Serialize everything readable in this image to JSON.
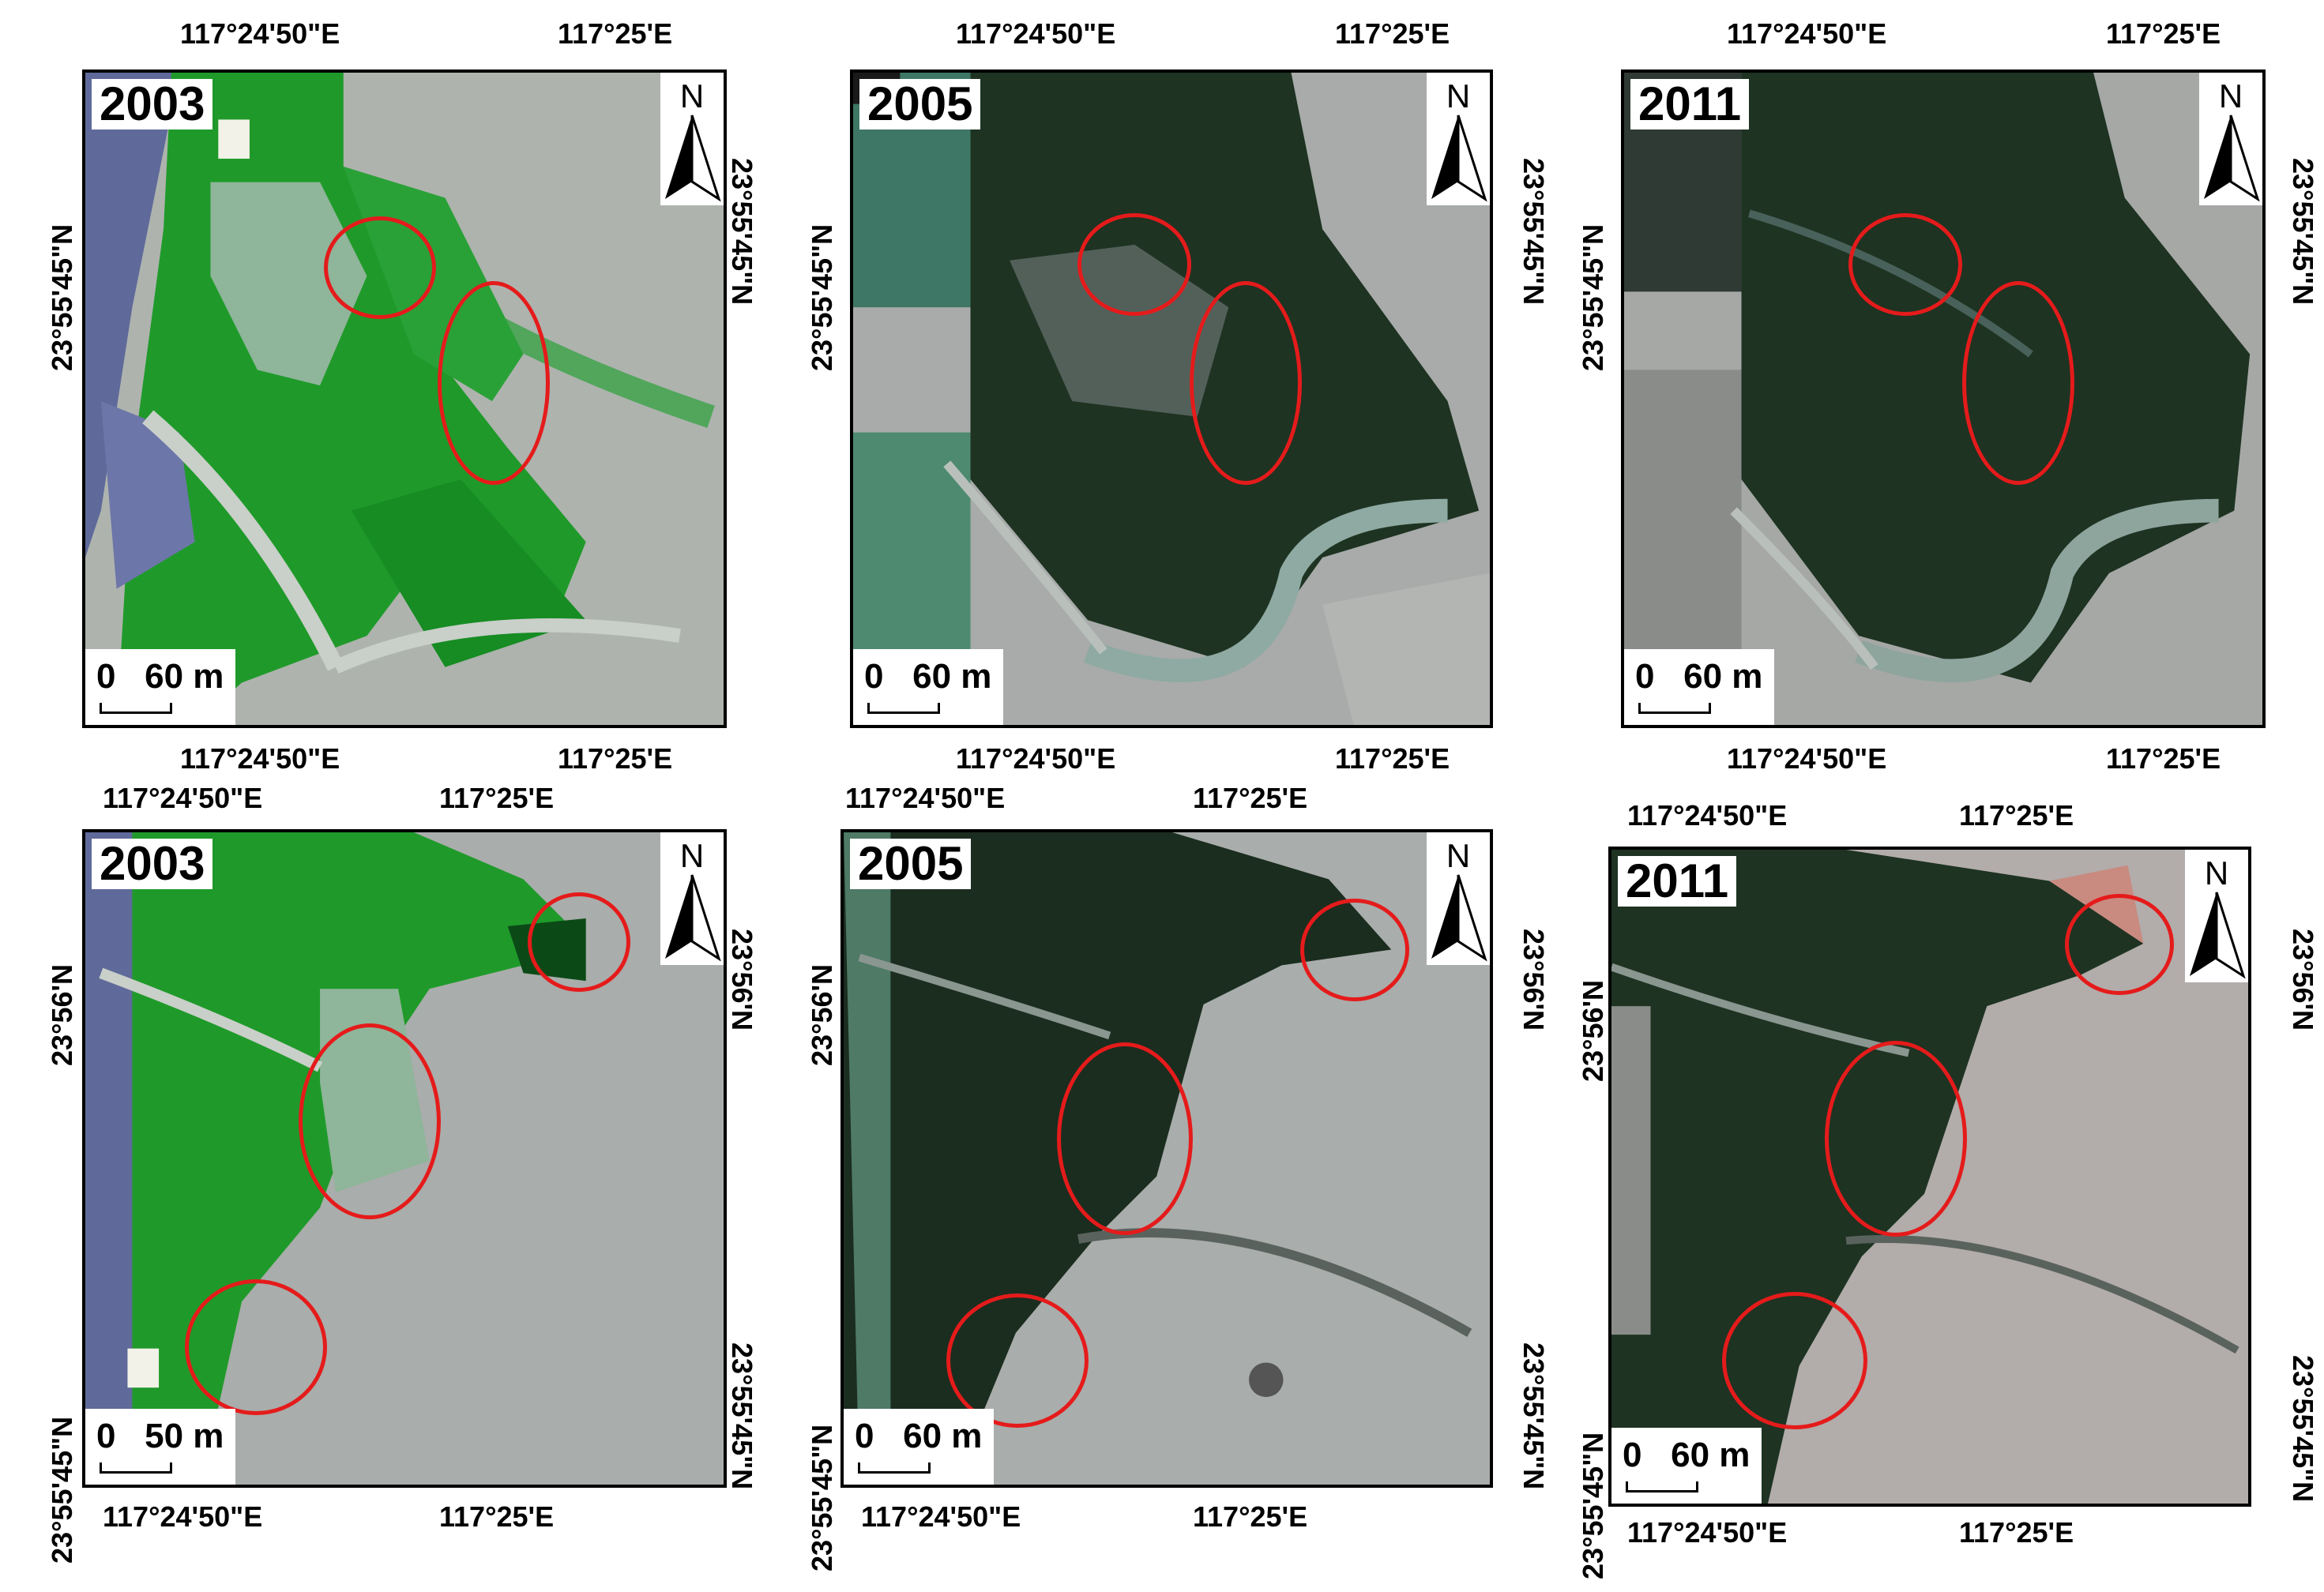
{
  "panels": [
    {
      "year": "2003",
      "scale": "0   60 m",
      "lon_a": "117°24'50\"E",
      "lon_b": "117°25'E",
      "lat_a": "23°55'45\"N",
      "north": "N"
    },
    {
      "year": "2005",
      "scale": "0   60 m",
      "lon_a": "117°24'50\"E",
      "lon_b": "117°25'E",
      "lat_a": "23°55'45\"N",
      "north": "N"
    },
    {
      "year": "2011",
      "scale": "0   60 m",
      "lon_a": "117°24'50\"E",
      "lon_b": "117°25'E",
      "lat_a": "23°55'45\"N",
      "north": "N"
    },
    {
      "year": "2003",
      "scale": "0   50 m",
      "lon_a": "117°24'50\"E",
      "lon_b": "117°25'E",
      "lat_a": "23°56'N",
      "lat_b": "23°55'45\"N",
      "north": "N"
    },
    {
      "year": "2005",
      "scale": "0   60 m",
      "lon_a": "117°24'50\"E",
      "lon_b": "117°25'E",
      "lat_a": "23°56'N",
      "lat_b": "23°55'45\"N",
      "north": "N"
    },
    {
      "year": "2011",
      "scale": "0   60 m",
      "lon_a": "117°24'50\"E",
      "lon_b": "117°25'E",
      "lat_a": "23°56'N",
      "lat_b": "23°55'45\"N",
      "north": "N"
    }
  ],
  "colors": {
    "highlight": "#e51b1b",
    "mangrove_2003": "#1f9a2a",
    "mangrove_later": "#1e3322",
    "mudflat": "#a9adab"
  },
  "icons": [
    "north-arrow-icon"
  ]
}
